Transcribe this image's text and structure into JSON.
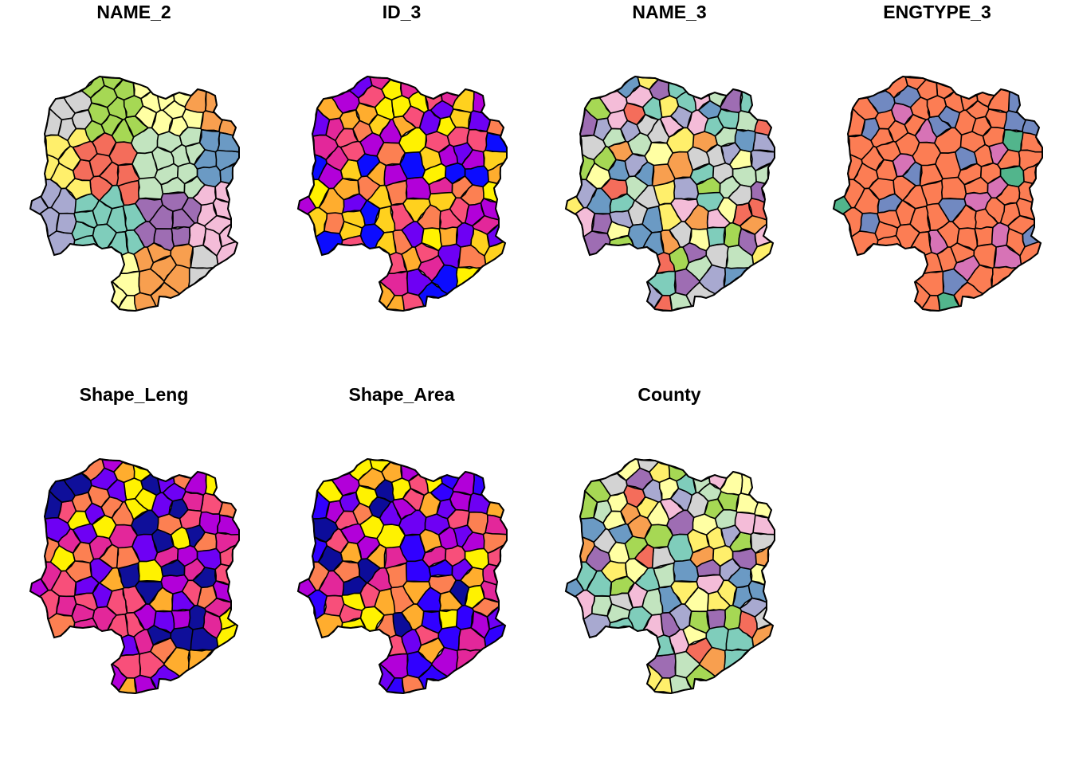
{
  "figure": {
    "panels": [
      {
        "title": "NAME_2",
        "palette": "pastel_qualitative",
        "fill_colors": [
          "#d3d3d3",
          "#7fcdbb",
          "#6b9ac4",
          "#a6d854",
          "#9e6db3",
          "#ffef6b",
          "#ffffa3",
          "#f4bcd8",
          "#f46d5b",
          "#f89f4f",
          "#a8a9d0",
          "#c2e4bf"
        ]
      },
      {
        "title": "ID_3",
        "palette": "sequential_blue_to_yellow",
        "fill_colors": [
          "#0c0cff",
          "#6e00f4",
          "#b200d9",
          "#e3279a",
          "#f84f7a",
          "#fc8052",
          "#ffad2e",
          "#ffd11e",
          "#fff200"
        ]
      },
      {
        "title": "NAME_3",
        "palette": "pastel_qualitative",
        "fill_colors": [
          "#d3d3d3",
          "#7fcdbb",
          "#6b9ac4",
          "#a6d854",
          "#9e6db3",
          "#ffef6b",
          "#ffffa3",
          "#f4bcd8",
          "#f46d5b",
          "#f89f4f",
          "#a8a9d0",
          "#c2e4bf"
        ]
      },
      {
        "title": "ENGTYPE_3",
        "palette": "categorical",
        "fill_colors": [
          "#fc7d54",
          "#7189c1",
          "#d773b6",
          "#52b58c"
        ]
      },
      {
        "title": "Shape_Leng",
        "palette": "sequential_blue_to_yellow",
        "fill_colors": [
          "#0f0f9a",
          "#6e00f4",
          "#b200d9",
          "#e3279a",
          "#f84f7a",
          "#fc8052",
          "#ffad2e",
          "#fff200"
        ]
      },
      {
        "title": "Shape_Area",
        "palette": "sequential_blue_to_yellow",
        "fill_colors": [
          "#0c0c9a",
          "#3100ff",
          "#6e00f4",
          "#b200d9",
          "#e3279a",
          "#f84f7a",
          "#fc8052",
          "#ffad2e",
          "#fff200"
        ]
      },
      {
        "title": "County",
        "palette": "pastel_qualitative",
        "fill_colors": [
          "#d3d3d3",
          "#7fcdbb",
          "#6b9ac4",
          "#a6d854",
          "#9e6db3",
          "#ffef6b",
          "#ffffa3",
          "#f4bcd8",
          "#f46d5b",
          "#f89f4f",
          "#a8a9d0",
          "#c2e4bf"
        ]
      }
    ],
    "border_color": "#000000"
  }
}
